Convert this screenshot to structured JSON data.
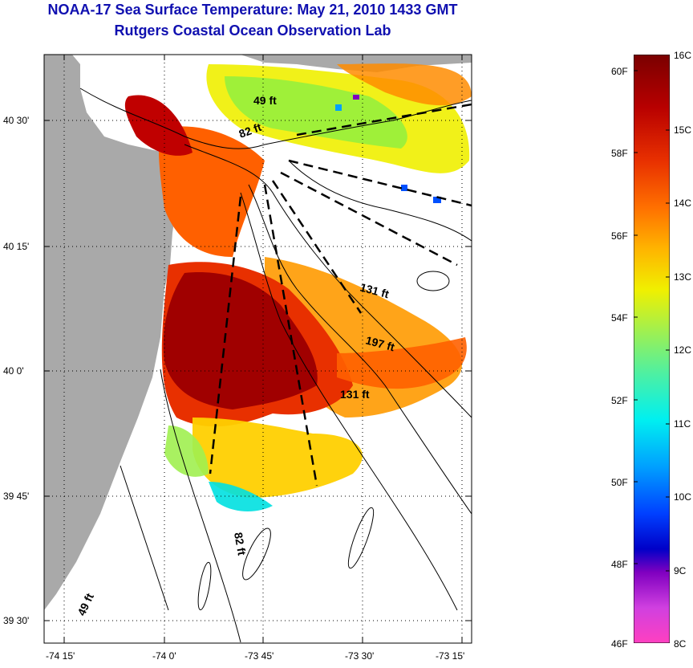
{
  "title": "NOAA-17 Sea Surface Temperature:  May 21, 2010 1433 GMT",
  "subtitle": "Rutgers Coastal Ocean Observation Lab",
  "colors": {
    "title": "#1010b0",
    "land": "#a9a9a9",
    "grid": "#000000"
  },
  "longitude_ticks": [
    "-74 15'",
    "-74 0'",
    "-73 45'",
    "-73 30'",
    "-73 15'"
  ],
  "latitude_ticks": [
    "40 30'",
    "40 15'",
    "40 0'",
    "39 45'",
    "39 30'"
  ],
  "depth_labels": [
    {
      "text": "49 ft"
    },
    {
      "text": "82 ft"
    },
    {
      "text": "131 ft"
    },
    {
      "text": "197 ft"
    },
    {
      "text": "131 ft"
    },
    {
      "text": "82 ft"
    },
    {
      "text": "49 ft"
    }
  ],
  "colorbar": {
    "fahrenheit_labels": [
      "60F",
      "58F",
      "56F",
      "54F",
      "52F",
      "50F",
      "48F",
      "46F"
    ],
    "celsius_labels": [
      "16C",
      "15C",
      "14C",
      "13C",
      "12C",
      "11C",
      "10C",
      "9C",
      "8C"
    ],
    "range_celsius": [
      8,
      16
    ]
  }
}
